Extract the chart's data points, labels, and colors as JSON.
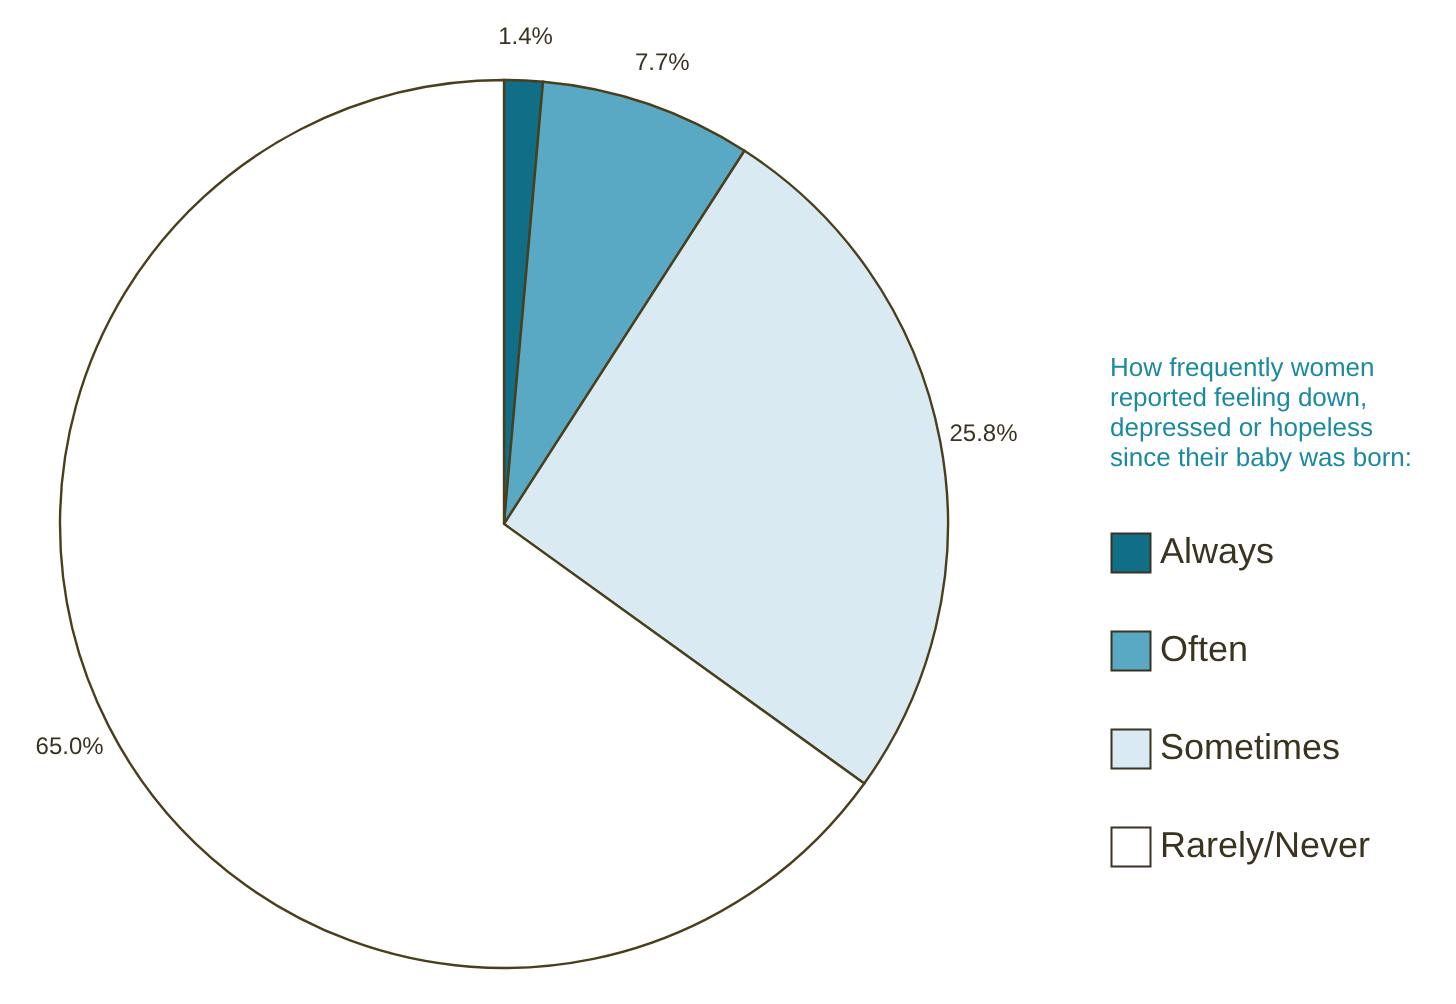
{
  "chart_data": {
    "type": "pie",
    "legend_title": "How frequently women reported feeling down, depressed or hopeless since their baby was born:",
    "categories": [
      "Always",
      "Often",
      "Sometimes",
      "Rarely/Never"
    ],
    "values": [
      1.4,
      7.7,
      25.8,
      65.0
    ],
    "value_labels": [
      "1.4%",
      "7.7%",
      "25.8%",
      "65.0%"
    ],
    "colors": [
      "#106f86",
      "#5aa9c4",
      "#d9eaf2",
      "#ffffff"
    ],
    "legend": "right"
  }
}
